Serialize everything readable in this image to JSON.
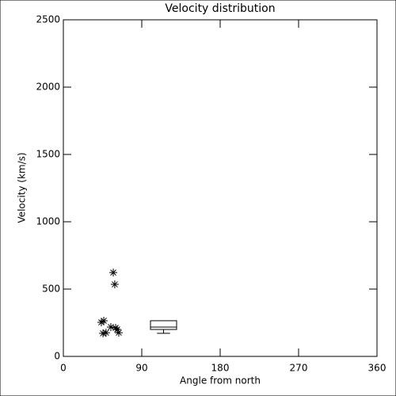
{
  "chart_data": {
    "type": "scatter",
    "title": "Velocity distribution",
    "x_label": "Angle from north",
    "y_label": "Velocity (km/s)",
    "xlim": [
      0,
      360
    ],
    "xticks": [
      0,
      90,
      180,
      270,
      360
    ],
    "ylim": [
      0,
      2500
    ],
    "yticks": [
      0,
      500,
      1000,
      1500,
      2000,
      2500
    ],
    "color": "#000000",
    "x": [
      57.3,
      59,
      43.6,
      46.4,
      49,
      45.5,
      54.5,
      60,
      63.6,
      61.8
    ],
    "y": [
      623,
      535,
      253,
      265,
      176,
      171,
      218,
      212,
      176,
      200
    ],
    "box": {
      "x_range": [
        100,
        130
      ],
      "whisker_low": 171,
      "q1": 200,
      "median": 218,
      "q3": 265,
      "whisker_high": 265
    }
  }
}
